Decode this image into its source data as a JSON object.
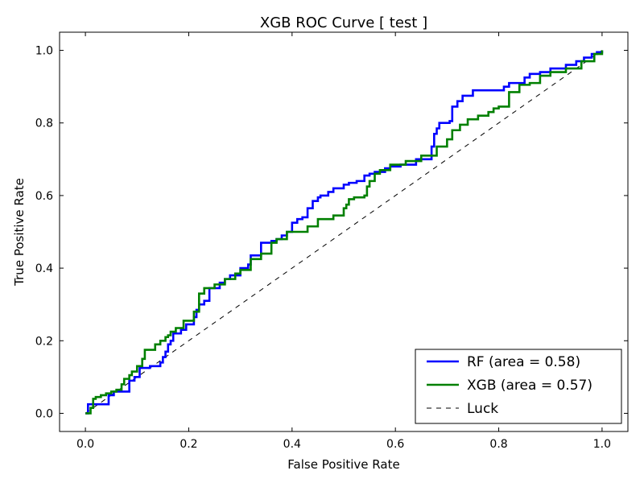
{
  "chart_data": {
    "type": "line",
    "title": "XGB ROC Curve [ test ]",
    "xlabel": "False Positive Rate",
    "ylabel": "True Positive Rate",
    "xlim": [
      -0.05,
      1.05
    ],
    "ylim": [
      -0.05,
      1.05
    ],
    "xticks": [
      "0.0",
      "0.2",
      "0.4",
      "0.6",
      "0.8",
      "1.0"
    ],
    "yticks": [
      "0.0",
      "0.2",
      "0.4",
      "0.6",
      "0.8",
      "1.0"
    ],
    "grid": false,
    "legend_position": "lower-right",
    "series": [
      {
        "name": "RF (area = 0.58)",
        "color": "#0000ff",
        "style": "solid",
        "step": true,
        "x": [
          0.0,
          0.005,
          0.015,
          0.045,
          0.055,
          0.085,
          0.095,
          0.105,
          0.125,
          0.145,
          0.15,
          0.155,
          0.16,
          0.165,
          0.17,
          0.185,
          0.195,
          0.2,
          0.21,
          0.215,
          0.22,
          0.23,
          0.24,
          0.26,
          0.27,
          0.28,
          0.3,
          0.315,
          0.32,
          0.34,
          0.36,
          0.37,
          0.38,
          0.39,
          0.4,
          0.41,
          0.42,
          0.43,
          0.44,
          0.45,
          0.455,
          0.47,
          0.48,
          0.5,
          0.51,
          0.525,
          0.54,
          0.55,
          0.56,
          0.58,
          0.59,
          0.61,
          0.64,
          0.67,
          0.675,
          0.68,
          0.685,
          0.705,
          0.71,
          0.72,
          0.73,
          0.75,
          0.8,
          0.81,
          0.82,
          0.85,
          0.86,
          0.88,
          0.9,
          0.93,
          0.95,
          0.965,
          0.98,
          0.99,
          1.0
        ],
        "y": [
          0.0,
          0.025,
          0.025,
          0.05,
          0.06,
          0.09,
          0.1,
          0.125,
          0.13,
          0.14,
          0.155,
          0.17,
          0.19,
          0.2,
          0.22,
          0.23,
          0.245,
          0.245,
          0.265,
          0.285,
          0.3,
          0.31,
          0.345,
          0.36,
          0.37,
          0.38,
          0.4,
          0.41,
          0.435,
          0.47,
          0.475,
          0.48,
          0.49,
          0.5,
          0.525,
          0.535,
          0.54,
          0.565,
          0.585,
          0.595,
          0.6,
          0.61,
          0.62,
          0.63,
          0.635,
          0.64,
          0.655,
          0.66,
          0.665,
          0.675,
          0.68,
          0.685,
          0.7,
          0.735,
          0.77,
          0.785,
          0.8,
          0.805,
          0.845,
          0.86,
          0.875,
          0.89,
          0.89,
          0.9,
          0.91,
          0.925,
          0.935,
          0.94,
          0.95,
          0.96,
          0.97,
          0.98,
          0.99,
          0.995,
          1.0
        ]
      },
      {
        "name": "XGB (area = 0.57)",
        "color": "#008000",
        "style": "solid",
        "step": true,
        "x": [
          0.0,
          0.01,
          0.015,
          0.02,
          0.03,
          0.04,
          0.05,
          0.06,
          0.07,
          0.075,
          0.085,
          0.09,
          0.1,
          0.11,
          0.115,
          0.135,
          0.145,
          0.155,
          0.16,
          0.165,
          0.175,
          0.19,
          0.21,
          0.22,
          0.23,
          0.25,
          0.27,
          0.29,
          0.3,
          0.32,
          0.34,
          0.36,
          0.37,
          0.39,
          0.43,
          0.45,
          0.48,
          0.5,
          0.505,
          0.51,
          0.52,
          0.54,
          0.545,
          0.55,
          0.56,
          0.57,
          0.59,
          0.62,
          0.65,
          0.68,
          0.7,
          0.71,
          0.725,
          0.74,
          0.76,
          0.78,
          0.79,
          0.8,
          0.82,
          0.84,
          0.86,
          0.88,
          0.9,
          0.93,
          0.96,
          0.985,
          1.0
        ],
        "y": [
          0.0,
          0.015,
          0.04,
          0.045,
          0.05,
          0.055,
          0.06,
          0.065,
          0.08,
          0.095,
          0.105,
          0.115,
          0.13,
          0.15,
          0.175,
          0.19,
          0.2,
          0.21,
          0.215,
          0.225,
          0.235,
          0.255,
          0.28,
          0.33,
          0.345,
          0.355,
          0.37,
          0.385,
          0.395,
          0.425,
          0.44,
          0.47,
          0.48,
          0.5,
          0.515,
          0.535,
          0.545,
          0.565,
          0.575,
          0.59,
          0.595,
          0.6,
          0.625,
          0.64,
          0.66,
          0.67,
          0.685,
          0.695,
          0.71,
          0.735,
          0.755,
          0.78,
          0.795,
          0.81,
          0.82,
          0.83,
          0.84,
          0.845,
          0.885,
          0.905,
          0.91,
          0.93,
          0.94,
          0.95,
          0.97,
          0.99,
          1.0
        ]
      },
      {
        "name": "Luck",
        "color": "#000000",
        "style": "dashed",
        "step": false,
        "x": [
          0.0,
          1.0
        ],
        "y": [
          0.0,
          1.0
        ]
      }
    ]
  }
}
